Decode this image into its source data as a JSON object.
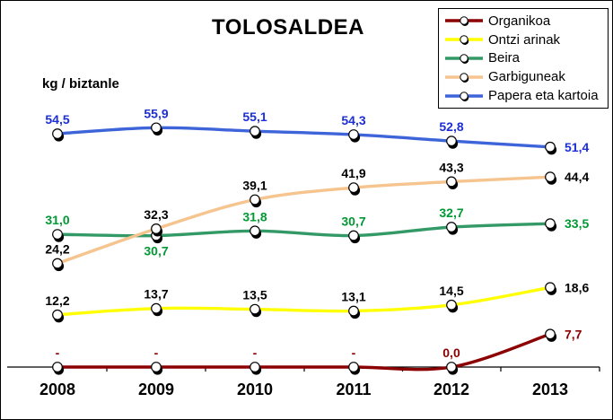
{
  "window": {
    "background": "#ffffff",
    "border_color": "#000000"
  },
  "chart_data": {
    "type": "line",
    "title": "TOLOSALDEA",
    "ylabel": "kg / biztanle",
    "categories": [
      "2008",
      "2009",
      "2010",
      "2011",
      "2012",
      "2013"
    ],
    "series": [
      {
        "name": "Organikoa",
        "color": "#8B0000",
        "label_color": "#8B0000",
        "values": [
          null,
          null,
          null,
          null,
          0.0,
          7.7
        ],
        "labels": [
          "-",
          "-",
          "-",
          "-",
          "0,0",
          "7,7"
        ]
      },
      {
        "name": "Ontzi arinak",
        "color": "#FFFF00",
        "label_color": "#000000",
        "values": [
          12.2,
          13.7,
          13.5,
          13.1,
          14.5,
          18.6
        ],
        "labels": [
          "12,2",
          "13,7",
          "13,5",
          "13,1",
          "14,5",
          "18,6"
        ]
      },
      {
        "name": "Beira",
        "color": "#339966",
        "label_color": "#009933",
        "values": [
          31.0,
          30.7,
          31.8,
          30.7,
          32.7,
          33.5
        ],
        "labels": [
          "31,0",
          "30,7",
          "31,8",
          "30,7",
          "32,7",
          "33,5"
        ],
        "label_below": [
          false,
          true,
          false,
          false,
          false,
          false
        ]
      },
      {
        "name": "Garbiguneak",
        "color": "#F6C48E",
        "label_color": "#000000",
        "values": [
          24.2,
          32.3,
          39.1,
          41.9,
          43.3,
          44.4
        ],
        "labels": [
          "24,2",
          "32,3",
          "39,1",
          "41,9",
          "43,3",
          "44,4"
        ]
      },
      {
        "name": "Papera eta kartoia",
        "color": "#3E64D9",
        "label_color": "#1C2FD6",
        "values": [
          54.5,
          55.9,
          55.1,
          54.3,
          52.8,
          51.4
        ],
        "labels": [
          "54,5",
          "55,9",
          "55,1",
          "54,3",
          "52,8",
          "51,4"
        ]
      }
    ],
    "legend_position": "top-right",
    "grid": false,
    "ylim": [
      0,
      84
    ],
    "xaxis_visible": true,
    "yaxis_visible": false
  }
}
